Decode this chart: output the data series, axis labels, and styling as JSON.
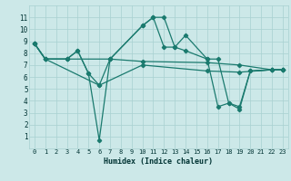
{
  "xlabel": "Humidex (Indice chaleur)",
  "xlim": [
    -0.5,
    23.5
  ],
  "ylim": [
    0,
    12
  ],
  "xticks": [
    0,
    1,
    2,
    3,
    4,
    5,
    6,
    7,
    8,
    9,
    10,
    11,
    12,
    13,
    14,
    15,
    16,
    17,
    18,
    19,
    20,
    21,
    22,
    23
  ],
  "yticks": [
    1,
    2,
    3,
    4,
    5,
    6,
    7,
    8,
    9,
    10,
    11
  ],
  "bg_color": "#cce8e8",
  "grid_color": "#a8d0d0",
  "line_color": "#1a7a6e",
  "lines": [
    {
      "x": [
        0,
        1,
        3,
        4,
        5,
        6,
        7,
        10,
        11,
        12,
        13,
        14,
        16,
        17,
        18,
        19,
        20,
        22,
        23
      ],
      "y": [
        8.8,
        7.5,
        7.5,
        8.2,
        6.3,
        0.7,
        7.5,
        10.3,
        11.0,
        11.0,
        8.5,
        9.5,
        7.5,
        3.5,
        3.8,
        3.3,
        6.5,
        6.6,
        6.6
      ]
    },
    {
      "x": [
        0,
        1,
        3,
        4,
        5,
        6,
        7,
        10,
        11,
        12,
        13,
        14,
        16,
        17,
        18,
        19,
        20,
        22,
        23
      ],
      "y": [
        8.8,
        7.5,
        7.5,
        8.2,
        6.3,
        5.3,
        7.5,
        10.3,
        11.0,
        8.5,
        8.5,
        8.2,
        7.5,
        7.5,
        3.8,
        3.5,
        6.5,
        6.6,
        6.6
      ]
    },
    {
      "x": [
        0,
        1,
        3,
        7,
        10,
        16,
        19,
        22,
        23
      ],
      "y": [
        8.8,
        7.5,
        7.5,
        7.5,
        7.3,
        7.2,
        7.0,
        6.6,
        6.6
      ]
    },
    {
      "x": [
        0,
        1,
        6,
        10,
        16,
        19,
        22,
        23
      ],
      "y": [
        8.8,
        7.5,
        5.3,
        7.0,
        6.5,
        6.4,
        6.6,
        6.6
      ]
    }
  ]
}
